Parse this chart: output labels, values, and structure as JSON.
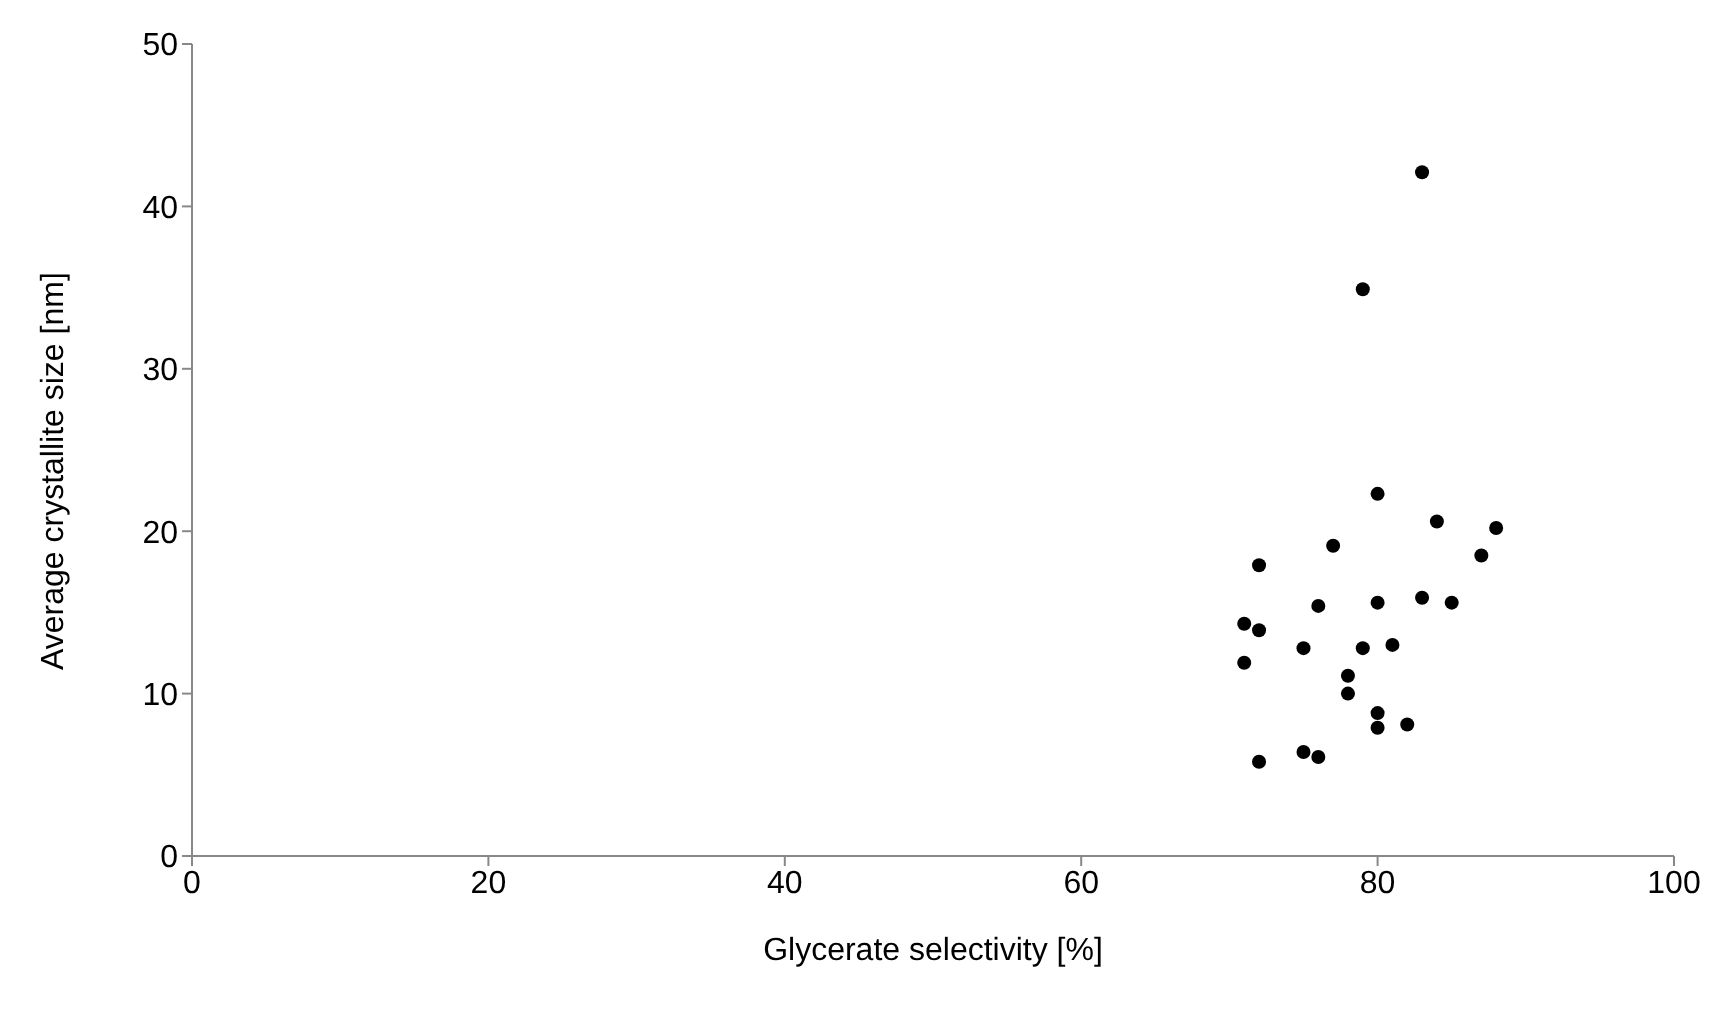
{
  "chart_data": {
    "type": "scatter",
    "xlabel": "Glycerate selectivity [%]",
    "ylabel": "Average crystallite size [nm]",
    "x": [
      83,
      79,
      80,
      84,
      88,
      77,
      72,
      87,
      76,
      80,
      83,
      85,
      71,
      72,
      75,
      79,
      81,
      71,
      78,
      78,
      80,
      80,
      82,
      72,
      75,
      76
    ],
    "values": [
      42.1,
      34.9,
      22.3,
      20.6,
      20.2,
      19.1,
      17.9,
      18.5,
      15.4,
      15.6,
      15.9,
      15.6,
      14.3,
      13.9,
      12.8,
      12.8,
      13.0,
      11.9,
      11.1,
      10.0,
      8.8,
      7.9,
      8.1,
      5.8,
      6.4,
      6.1
    ],
    "color": "#000000",
    "marker": "circle",
    "xlim": [
      0,
      100
    ],
    "xticks": [
      0,
      20,
      40,
      60,
      80,
      100
    ],
    "ylim": [
      0,
      50
    ],
    "yticks": [
      0,
      10,
      20,
      30,
      40,
      50
    ],
    "grid": false,
    "legend": false
  }
}
